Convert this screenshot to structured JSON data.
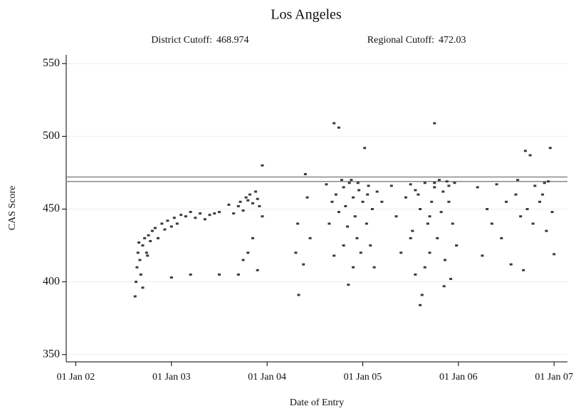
{
  "chart_data": {
    "type": "scatter",
    "title": "Los Angeles",
    "cutoffs": [
      {
        "label": "District Cutoff:",
        "value": 468.974
      },
      {
        "label": "Regional Cutoff:",
        "value": 472.03
      }
    ],
    "xlabel": "Date of Entry",
    "ylabel": "CAS Score",
    "xlim": [
      2001.9,
      2007.14
    ],
    "ylim": [
      345,
      556
    ],
    "xticks": [
      {
        "value": 2002,
        "label": "01 Jan 02"
      },
      {
        "value": 2003,
        "label": "01 Jan 03"
      },
      {
        "value": 2004,
        "label": "01 Jan 04"
      },
      {
        "value": 2005,
        "label": "01 Jan 05"
      },
      {
        "value": 2006,
        "label": "01 Jan 06"
      },
      {
        "value": 2007,
        "label": "01 Jan 07"
      }
    ],
    "yticks": [
      350,
      400,
      450,
      500,
      550
    ],
    "grid": true,
    "color": "#3a3a3a",
    "x": [
      2002.62,
      2002.63,
      2002.64,
      2002.65,
      2002.66,
      2002.67,
      2002.68,
      2002.7,
      2002.72,
      2002.74,
      2002.76,
      2002.78,
      2002.8,
      2002.83,
      2002.86,
      2002.9,
      2002.93,
      2002.96,
      2003.0,
      2003.03,
      2003.06,
      2003.1,
      2003.15,
      2003.2,
      2003.25,
      2003.3,
      2003.35,
      2003.4,
      2003.45,
      2003.5,
      2003.0,
      2003.2,
      2003.5,
      2002.7,
      2002.75,
      2003.65,
      2003.7,
      2003.72,
      2003.75,
      2003.78,
      2003.8,
      2003.82,
      2003.85,
      2003.88,
      2003.9,
      2003.92,
      2003.95,
      2003.85,
      2003.8,
      2003.75,
      2003.9,
      2003.7,
      2003.95,
      2003.6,
      2004.3,
      2004.32,
      2004.33,
      2004.4,
      2004.42,
      2004.45,
      2004.38,
      2004.62,
      2004.65,
      2004.68,
      2004.7,
      2004.72,
      2004.75,
      2004.75,
      2004.78,
      2004.8,
      2004.82,
      2004.84,
      2004.86,
      2004.88,
      2004.9,
      2004.92,
      2004.94,
      2004.96,
      2004.98,
      2005.0,
      2005.02,
      2005.04,
      2005.06,
      2005.08,
      2005.1,
      2005.12,
      2005.15,
      2004.85,
      2004.7,
      2004.95,
      2004.9,
      2005.05,
      2004.8,
      2005.2,
      2005.3,
      2005.35,
      2005.4,
      2005.45,
      2005.5,
      2005.52,
      2005.55,
      2005.58,
      2005.6,
      2005.6,
      2005.62,
      2005.65,
      2005.68,
      2005.7,
      2005.72,
      2005.75,
      2005.75,
      2005.78,
      2005.8,
      2005.82,
      2005.84,
      2005.86,
      2005.88,
      2005.9,
      2005.92,
      2005.94,
      2005.96,
      2005.98,
      2005.85,
      2005.7,
      2005.55,
      2005.65,
      2005.5,
      2005.75,
      2005.9,
      2006.2,
      2006.25,
      2006.3,
      2006.35,
      2006.4,
      2006.45,
      2006.5,
      2006.55,
      2006.6,
      2006.65,
      2006.68,
      2006.7,
      2006.72,
      2006.75,
      2006.78,
      2006.8,
      2006.85,
      2006.9,
      2006.92,
      2006.94,
      2006.96,
      2006.98,
      2007.0,
      2006.88,
      2006.62
    ],
    "values": [
      390,
      400,
      410,
      420,
      427,
      415,
      405,
      425,
      430,
      420,
      432,
      428,
      435,
      437,
      430,
      440,
      436,
      442,
      438,
      444,
      440,
      446,
      445,
      448,
      444,
      447,
      443,
      446,
      447,
      448,
      403,
      405,
      405,
      396,
      418,
      447,
      452,
      455,
      449,
      458,
      456,
      460,
      454,
      462,
      457,
      452,
      445,
      430,
      420,
      415,
      408,
      405,
      480,
      453,
      420,
      440,
      391,
      474,
      458,
      430,
      412,
      467,
      440,
      455,
      509,
      460,
      506,
      448,
      470,
      465,
      452,
      438,
      468,
      470,
      458,
      445,
      430,
      463,
      420,
      455,
      492,
      440,
      466,
      425,
      450,
      410,
      462,
      398,
      418,
      468,
      410,
      460,
      425,
      455,
      466,
      445,
      420,
      458,
      467,
      435,
      405,
      460,
      384,
      450,
      391,
      468,
      440,
      420,
      455,
      509,
      465,
      430,
      470,
      448,
      462,
      415,
      469,
      455,
      402,
      440,
      468,
      425,
      397,
      445,
      463,
      410,
      430,
      468,
      466,
      465,
      418,
      450,
      440,
      467,
      430,
      455,
      412,
      460,
      445,
      408,
      490,
      450,
      487,
      440,
      466,
      455,
      468,
      435,
      469,
      492,
      448,
      419,
      460,
      470
    ]
  }
}
